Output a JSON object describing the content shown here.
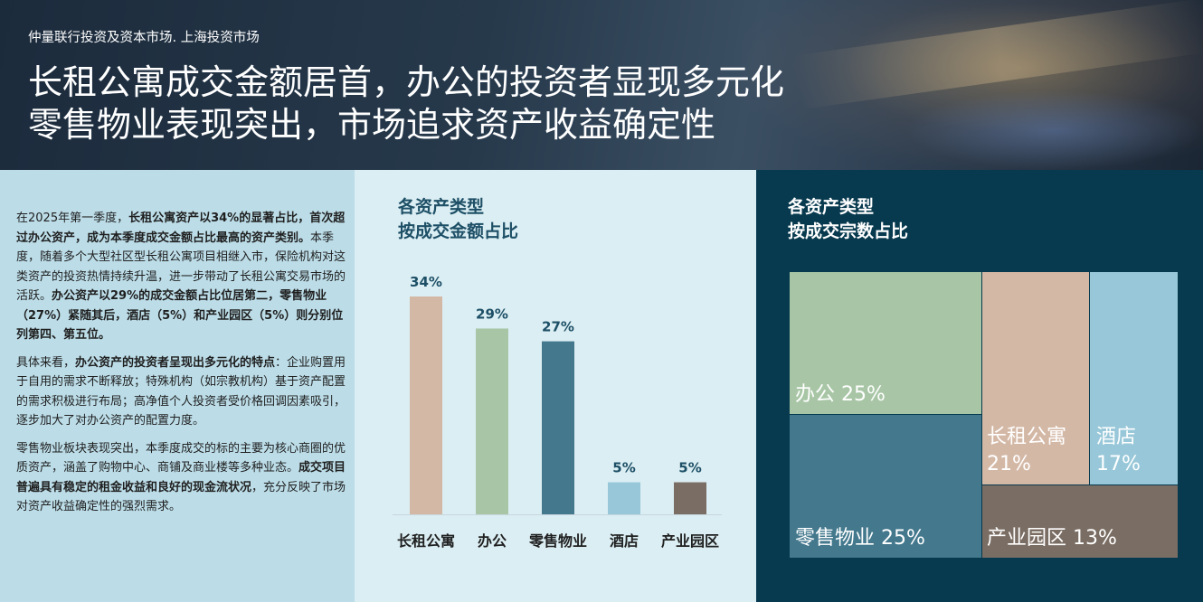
{
  "header": {
    "subtitle": "仲量联行投资及资本市场. 上海投资市场",
    "title_line1": "长租公寓成交金额居首，办公的投资者显现多元化",
    "title_line2": "零售物业表现突出，市场追求资产收益确定性"
  },
  "text": {
    "p1_a": "在2025年第一季度，",
    "p1_b": "长租公寓资产以34%的显著占比，首次超过办公资产，成为本季度成交金额占比最高的资产类别。",
    "p1_c": "本季度，随着多个大型社区型长租公寓项目相继入市，保险机构对这类资产的投资热情持续升温，进一步带动了长租公寓交易市场的活跃。",
    "p1_d": "办公资产以29%的成交金额占比位居第二，零售物业（27%）紧随其后，酒店（5%）和产业园区（5%）则分别位列第四、第五位。",
    "p2_a": "具体来看，",
    "p2_b": "办公资产的投资者呈现出多元化的特点",
    "p2_c": "：企业购置用于自用的需求不断释放；特殊机构（如宗教机构）基于资产配置的需求积极进行布局；高净值个人投资者受价格回调因素吸引，逐步加大了对办公资产的配置力度。",
    "p3_a": "零售物业板块表现突出，本季度成交的标的主要为核心商圈的优质资产，涵盖了购物中心、商铺及商业楼等多种业态。",
    "p3_b": "成交项目普遍具有稳定的租金收益和良好的现金流状况",
    "p3_c": "，充分反映了市场对资产收益确定性的强烈需求。"
  },
  "bar_chart_title": [
    "各资产类型",
    "按成交金额占比"
  ],
  "treemap_title": [
    "各资产类型",
    "按成交宗数占比"
  ],
  "chart_data": [
    {
      "type": "bar",
      "title": "各资产类型 按成交金额占比",
      "categories": [
        "长租公寓",
        "办公",
        "零售物业",
        "酒店",
        "产业园区"
      ],
      "values": [
        34,
        29,
        27,
        5,
        5
      ],
      "value_labels": [
        "34%",
        "29%",
        "27%",
        "5%",
        "5%"
      ],
      "colors": [
        "#d4b8a6",
        "#a8c6a6",
        "#43788d",
        "#97c7d8",
        "#7a6d63"
      ],
      "ylim": [
        0,
        34
      ]
    },
    {
      "type": "treemap",
      "title": "各资产类型 按成交宗数占比",
      "items": [
        {
          "name": "办公",
          "value": 25,
          "label": "办公 25%",
          "color": "#a8c6a6"
        },
        {
          "name": "零售物业",
          "value": 25,
          "label": "零售物业 25%",
          "color": "#43788d"
        },
        {
          "name": "长租公寓",
          "value": 21,
          "label_line1": "长租公寓",
          "label_line2": "21%",
          "color": "#d4b8a6"
        },
        {
          "name": "酒店",
          "value": 17,
          "label_line1": "酒店",
          "label_line2": "17%",
          "color": "#97c7d8"
        },
        {
          "name": "产业园区",
          "value": 13,
          "label": "产业园区 13%",
          "color": "#7a6d63"
        }
      ]
    }
  ]
}
